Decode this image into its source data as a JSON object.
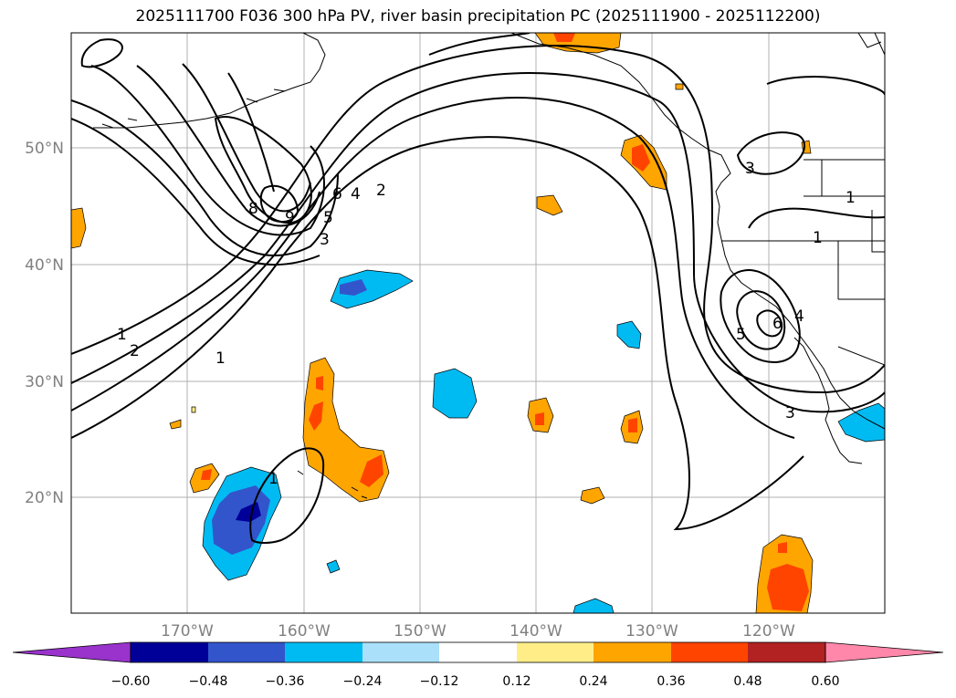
{
  "title": "2025111700 F036 300 hPa PV, river basin precipitation PC (2025111900 - 2025112200)",
  "map": {
    "lat_labels": [
      "50°N",
      "40°N",
      "30°N",
      "20°N"
    ],
    "lon_labels": [
      "170°W",
      "160°W",
      "150°W",
      "140°W",
      "130°W",
      "120°W"
    ],
    "contour_labels": [
      "1",
      "2",
      "3",
      "4",
      "5",
      "6",
      "8",
      "9",
      "1",
      "2",
      "3",
      "4",
      "5",
      "6",
      "3",
      "1",
      "1",
      "1"
    ]
  },
  "colorbar": {
    "ticks": [
      "−0.60",
      "−0.48",
      "−0.36",
      "−0.24",
      "−0.12",
      "0.12",
      "0.24",
      "0.36",
      "0.48",
      "0.60"
    ],
    "colors": [
      "#9933cc",
      "#000099",
      "#3355cc",
      "#00bbf2",
      "#aae0fa",
      "#ffffff",
      "#ffee88",
      "#ffa500",
      "#ff4400",
      "#b22222",
      "#ff88aa"
    ]
  }
}
